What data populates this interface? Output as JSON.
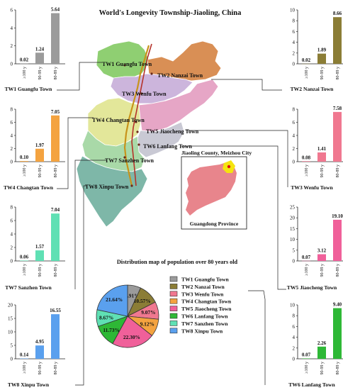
{
  "title": "World's Longevity Township-Jiaoling, China",
  "category_labels": [
    "≥100 y",
    "90-99 y",
    "80-89 y"
  ],
  "map": {
    "county_label": "Jiaoling County, Meizhou City",
    "province_label": "Guangdong Province",
    "town_labels": [
      "TW1 Guangfu Town",
      "TW2 Nanzai Town",
      "TW3 Wenfu Town",
      "TW4 Changtan Town",
      "TW5 Jiaocheng Town",
      "TW6 Lanfang Town",
      "TW7 Sanzhen Town",
      "TW8 Xinpu Town"
    ],
    "region_colors": {
      "TW1": "#8fcf72",
      "TW2": "#d98f55",
      "TW3": "#ccb5dc",
      "TW4": "#e3e79a",
      "TW5": "#e6a6c6",
      "TW6": "#c9c9d4",
      "TW7": "#a9d9a8",
      "TW8": "#7eb7a8",
      "river": "#c8931b",
      "road": "#b5322a",
      "province": "#e8858c",
      "county": "#f5e40f"
    }
  },
  "pie_caption": "Distribution map of population over 80 years old",
  "chart_data": {
    "title": "World's Longevity Township-Jiaoling, China",
    "subcharts": [
      {
        "type": "bar",
        "name": "TW1 Guangfu Town",
        "categories": [
          "≥100 y",
          "90-99 y",
          "80-89 y"
        ],
        "values": [
          0.02,
          1.24,
          5.64
        ],
        "labels": [
          "0.02",
          "1.24",
          "5.64"
        ],
        "ylim": [
          0,
          6
        ],
        "ticks": [
          "0",
          "2",
          "4",
          "6"
        ],
        "color": "#9b9b9b"
      },
      {
        "type": "bar",
        "name": "TW2 Nanzai Town",
        "categories": [
          "≥100 y",
          "90-99 y",
          "80-89 y"
        ],
        "values": [
          0.02,
          1.89,
          8.66
        ],
        "labels": [
          "0.02",
          "1.89",
          "8.66"
        ],
        "ylim": [
          0,
          10
        ],
        "ticks": [
          "0",
          "2",
          "4",
          "6",
          "8",
          "10"
        ],
        "color": "#8b7d36"
      },
      {
        "type": "bar",
        "name": "TW4 Changtan Town",
        "categories": [
          "≥100 y",
          "90-99 y",
          "80-89 y"
        ],
        "values": [
          0.1,
          1.97,
          7.05
        ],
        "labels": [
          "0.10",
          "1.97",
          "7.05"
        ],
        "ylim": [
          0,
          8
        ],
        "ticks": [
          "0",
          "2",
          "4",
          "6",
          "8"
        ],
        "color": "#f4a340"
      },
      {
        "type": "bar",
        "name": "TW3 Wenfu Town",
        "categories": [
          "≥100 y",
          "90-99 y",
          "80-89 y"
        ],
        "values": [
          0.08,
          1.41,
          7.58
        ],
        "labels": [
          "0.08",
          "1.41",
          "7.58"
        ],
        "ylim": [
          0,
          8
        ],
        "ticks": [
          "0",
          "2",
          "4",
          "6",
          "8"
        ],
        "color": "#f07890"
      },
      {
        "type": "bar",
        "name": "TW7 Sanzhen Town",
        "categories": [
          "≥100 y",
          "90-99 y",
          "80-89 y"
        ],
        "values": [
          0.06,
          1.57,
          7.04
        ],
        "labels": [
          "0.06",
          "1.57",
          "7.04"
        ],
        "ylim": [
          0,
          8
        ],
        "ticks": [
          "0",
          "2",
          "4",
          "6",
          "8"
        ],
        "color": "#5fe0b4"
      },
      {
        "type": "bar",
        "name": "TW5 Jiaocheng Town",
        "categories": [
          "≥100 y",
          "90-99 y",
          "80-89 y"
        ],
        "values": [
          0.07,
          3.12,
          19.1
        ],
        "labels": [
          "0.07",
          "3.12",
          "19.10"
        ],
        "ylim": [
          0,
          25
        ],
        "ticks": [
          "0",
          "5",
          "10",
          "15",
          "20",
          "25"
        ],
        "color": "#f0609a"
      },
      {
        "type": "bar",
        "name": "TW8 Xinpu Town",
        "categories": [
          "≥100 y",
          "90-99 y",
          "80-89 y"
        ],
        "values": [
          0.14,
          4.95,
          16.55
        ],
        "labels": [
          "0.14",
          "4.95",
          "16.55"
        ],
        "ylim": [
          0,
          20
        ],
        "ticks": [
          "0",
          "5",
          "10",
          "15",
          "20"
        ],
        "color": "#5aa0ee"
      },
      {
        "type": "bar",
        "name": "TW6 Lanfang Town",
        "categories": [
          "≥100 y",
          "90-99 y",
          "80-89 y"
        ],
        "values": [
          0.07,
          2.26,
          9.4
        ],
        "labels": [
          "0.07",
          "2.26",
          "9.40"
        ],
        "ylim": [
          0,
          10
        ],
        "ticks": [
          "0",
          "2",
          "4",
          "6",
          "8",
          "10"
        ],
        "color": "#2eb836"
      },
      {
        "type": "pie",
        "name": "Distribution map of population over 80 years old",
        "categories": [
          "TW1 Guangfu Town",
          "TW2 Nanzai Town",
          "TW3 Wenfu Town",
          "TW4 Changtan Town",
          "TW5 Jiaocheng Town",
          "TW6 Lanfang Town",
          "TW7 Sanzhen Town",
          "TW8 Xinpu Town"
        ],
        "values": [
          6.91,
          10.57,
          9.07,
          9.12,
          22.3,
          11.73,
          8.67,
          21.64
        ],
        "labels": [
          "6.91%",
          "10.57%",
          "9.07%",
          "9.12%",
          "22.30%",
          "11.73%",
          "8.67%",
          "21.64%"
        ],
        "colors": [
          "#9b9b9b",
          "#8b7d36",
          "#f07890",
          "#f4a340",
          "#f0609a",
          "#2eb836",
          "#5fe0b4",
          "#5aa0ee"
        ],
        "legend": "right"
      }
    ]
  }
}
